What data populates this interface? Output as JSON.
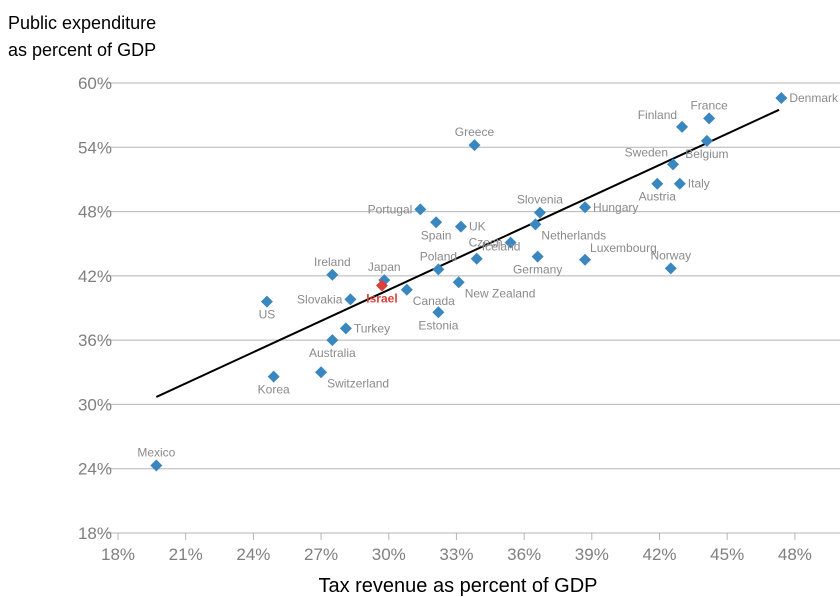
{
  "chart_data": {
    "type": "scatter",
    "ylabel": [
      "Public expenditure",
      "as percent of GDP"
    ],
    "xlabel": "Tax revenue as percent of GDP",
    "xlim": [
      18,
      50
    ],
    "ylim": [
      18,
      60
    ],
    "x_ticks": [
      {
        "v": 18,
        "label": "18%"
      },
      {
        "v": 21,
        "label": "21%"
      },
      {
        "v": 24,
        "label": "24%"
      },
      {
        "v": 27,
        "label": "27%"
      },
      {
        "v": 30,
        "label": "30%"
      },
      {
        "v": 33,
        "label": "33%"
      },
      {
        "v": 36,
        "label": "36%"
      },
      {
        "v": 39,
        "label": "39%"
      },
      {
        "v": 42,
        "label": "42%"
      },
      {
        "v": 45,
        "label": "45%"
      },
      {
        "v": 48,
        "label": "48%"
      }
    ],
    "y_ticks": [
      {
        "v": 18,
        "label": "18%"
      },
      {
        "v": 24,
        "label": "24%"
      },
      {
        "v": 30,
        "label": "30%"
      },
      {
        "v": 36,
        "label": "36%"
      },
      {
        "v": 42,
        "label": "42%"
      },
      {
        "v": 48,
        "label": "48%"
      },
      {
        "v": 54,
        "label": "54%"
      },
      {
        "v": 60,
        "label": "60%"
      }
    ],
    "grid": "horizontal",
    "colors": {
      "point": "#3a87c0",
      "highlight": "#d9423a",
      "trend": "#000000",
      "grid": "#b5b5b5",
      "tick": "#7f7f7f"
    },
    "trendline": {
      "x": [
        19.7,
        47.3
      ],
      "y": [
        30.7,
        57.5
      ]
    },
    "points": [
      {
        "name": "Denmark",
        "x": 47.4,
        "y": 58.6,
        "pos": "right"
      },
      {
        "name": "France",
        "x": 44.2,
        "y": 56.7,
        "pos": "above"
      },
      {
        "name": "Finland",
        "x": 43.0,
        "y": 55.9,
        "pos": "above-left"
      },
      {
        "name": "Belgium",
        "x": 44.1,
        "y": 54.6,
        "pos": "below"
      },
      {
        "name": "Greece",
        "x": 33.8,
        "y": 54.2,
        "pos": "above"
      },
      {
        "name": "Sweden",
        "x": 42.6,
        "y": 52.4,
        "pos": "above-left"
      },
      {
        "name": "Austria",
        "x": 41.9,
        "y": 50.6,
        "pos": "below"
      },
      {
        "name": "Italy",
        "x": 42.9,
        "y": 50.6,
        "pos": "right"
      },
      {
        "name": "Hungary",
        "x": 38.7,
        "y": 48.4,
        "pos": "right"
      },
      {
        "name": "Portugal",
        "x": 31.4,
        "y": 48.2,
        "pos": "left"
      },
      {
        "name": "Slovenia",
        "x": 36.7,
        "y": 47.9,
        "pos": "above"
      },
      {
        "name": "Spain",
        "x": 32.1,
        "y": 47.0,
        "pos": "below"
      },
      {
        "name": "UK",
        "x": 33.2,
        "y": 46.6,
        "pos": "right"
      },
      {
        "name": "Netherlands",
        "x": 36.5,
        "y": 46.8,
        "pos": "below-right"
      },
      {
        "name": "Czech",
        "x": 35.4,
        "y": 45.1,
        "pos": "left"
      },
      {
        "name": "Iceland",
        "x": 33.9,
        "y": 43.6,
        "pos": "above-right"
      },
      {
        "name": "Germany",
        "x": 36.6,
        "y": 43.8,
        "pos": "below"
      },
      {
        "name": "Luxembourg",
        "x": 38.7,
        "y": 43.5,
        "pos": "above-right"
      },
      {
        "name": "Norway",
        "x": 42.5,
        "y": 42.7,
        "pos": "above"
      },
      {
        "name": "Poland",
        "x": 32.2,
        "y": 42.6,
        "pos": "above"
      },
      {
        "name": "Ireland",
        "x": 27.5,
        "y": 42.1,
        "pos": "above"
      },
      {
        "name": "Japan",
        "x": 29.8,
        "y": 41.6,
        "pos": "above"
      },
      {
        "name": "Israel",
        "x": 29.7,
        "y": 41.1,
        "pos": "below",
        "highlight": true
      },
      {
        "name": "New Zealand",
        "x": 33.1,
        "y": 41.4,
        "pos": "below-right"
      },
      {
        "name": "Canada",
        "x": 30.8,
        "y": 40.7,
        "pos": "below-right"
      },
      {
        "name": "Slovakia",
        "x": 28.3,
        "y": 39.8,
        "pos": "left"
      },
      {
        "name": "US",
        "x": 24.6,
        "y": 39.6,
        "pos": "below"
      },
      {
        "name": "Estonia",
        "x": 32.2,
        "y": 38.6,
        "pos": "below"
      },
      {
        "name": "Turkey",
        "x": 28.1,
        "y": 37.1,
        "pos": "right"
      },
      {
        "name": "Australia",
        "x": 27.5,
        "y": 36.0,
        "pos": "below"
      },
      {
        "name": "Switzerland",
        "x": 27.0,
        "y": 33.0,
        "pos": "below-right"
      },
      {
        "name": "Korea",
        "x": 24.9,
        "y": 32.6,
        "pos": "below"
      },
      {
        "name": "Mexico",
        "x": 19.7,
        "y": 24.3,
        "pos": "above"
      }
    ]
  }
}
